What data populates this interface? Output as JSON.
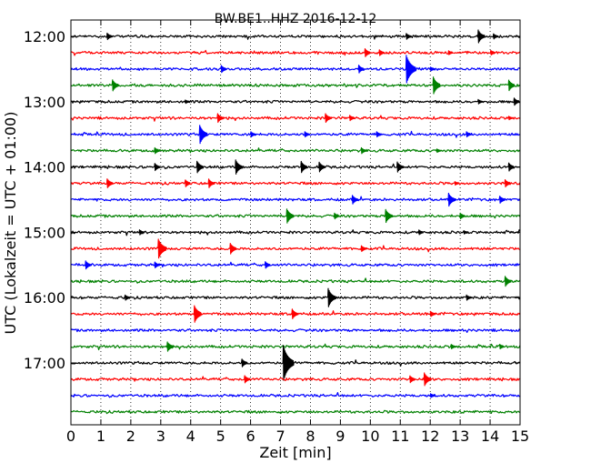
{
  "chart_data": {
    "type": "line",
    "title": "BW.BE1..HHZ 2016-12-12",
    "xlabel": "Zeit  [min]",
    "ylabel": "UTC (Lokalzeit = UTC + 01:00)",
    "xlim": [
      0,
      15
    ],
    "x_ticks": [
      0,
      1,
      2,
      3,
      4,
      5,
      6,
      7,
      8,
      9,
      10,
      11,
      12,
      13,
      14,
      15
    ],
    "x_tick_labels": [
      "0",
      "1",
      "2",
      "3",
      "4",
      "5",
      "6",
      "7",
      "8",
      "9",
      "10",
      "11",
      "12",
      "13",
      "14",
      "15"
    ],
    "grid": "vertical dotted lines at each minute",
    "trace_interval_minutes": 15,
    "y_tick_labels": [
      "12:00",
      "13:00",
      "14:00",
      "15:00",
      "16:00",
      "17:00"
    ],
    "trace_colors": [
      "#000000",
      "#ff0000",
      "#0000ff",
      "#008000"
    ],
    "series": [
      {
        "start": "12:00",
        "events": [
          [
            1.2,
            0.25
          ],
          [
            11.2,
            0.2
          ],
          [
            13.6,
            0.45
          ],
          [
            14.1,
            0.2
          ]
        ]
      },
      {
        "start": "12:15",
        "events": [
          [
            9.8,
            0.35
          ],
          [
            10.3,
            0.2
          ],
          [
            12.6,
            0.15
          ],
          [
            14.0,
            0.2
          ]
        ]
      },
      {
        "start": "12:30",
        "events": [
          [
            5.0,
            0.3
          ],
          [
            9.6,
            0.3
          ],
          [
            11.2,
            1.0
          ],
          [
            12.0,
            0.15
          ]
        ]
      },
      {
        "start": "12:45",
        "events": [
          [
            1.4,
            0.35
          ],
          [
            12.1,
            0.6
          ],
          [
            14.6,
            0.45
          ]
        ]
      },
      {
        "start": "13:00",
        "events": [
          [
            3.8,
            0.15
          ],
          [
            13.6,
            0.15
          ],
          [
            14.8,
            0.25
          ]
        ]
      },
      {
        "start": "13:15",
        "events": [
          [
            4.9,
            0.3
          ],
          [
            8.5,
            0.3
          ],
          [
            9.3,
            0.2
          ],
          [
            14.6,
            0.15
          ]
        ]
      },
      {
        "start": "13:30",
        "events": [
          [
            4.3,
            0.65
          ],
          [
            6.0,
            0.2
          ],
          [
            7.8,
            0.2
          ],
          [
            10.2,
            0.2
          ],
          [
            13.2,
            0.2
          ]
        ]
      },
      {
        "start": "13:45",
        "events": [
          [
            2.8,
            0.2
          ],
          [
            9.7,
            0.2
          ],
          [
            12.2,
            0.15
          ]
        ]
      },
      {
        "start": "14:00",
        "events": [
          [
            2.8,
            0.25
          ],
          [
            4.2,
            0.45
          ],
          [
            5.5,
            0.5
          ],
          [
            7.7,
            0.35
          ],
          [
            8.3,
            0.3
          ],
          [
            10.9,
            0.35
          ],
          [
            14.6,
            0.35
          ]
        ]
      },
      {
        "start": "14:15",
        "events": [
          [
            1.2,
            0.35
          ],
          [
            3.8,
            0.3
          ],
          [
            4.6,
            0.3
          ],
          [
            12.8,
            0.15
          ],
          [
            14.5,
            0.25
          ]
        ]
      },
      {
        "start": "14:30",
        "events": [
          [
            9.4,
            0.3
          ],
          [
            12.6,
            0.5
          ],
          [
            14.3,
            0.3
          ]
        ]
      },
      {
        "start": "14:45",
        "events": [
          [
            7.2,
            0.55
          ],
          [
            8.8,
            0.2
          ],
          [
            10.5,
            0.5
          ],
          [
            13.0,
            0.2
          ]
        ]
      },
      {
        "start": "15:00",
        "events": [
          [
            2.3,
            0.15
          ],
          [
            11.6,
            0.2
          ],
          [
            13.1,
            0.15
          ]
        ]
      },
      {
        "start": "15:15",
        "events": [
          [
            2.9,
            0.8
          ],
          [
            5.3,
            0.45
          ],
          [
            9.7,
            0.2
          ]
        ]
      },
      {
        "start": "15:30",
        "events": [
          [
            0.5,
            0.25
          ],
          [
            2.8,
            0.2
          ],
          [
            6.5,
            0.2
          ]
        ]
      },
      {
        "start": "15:45",
        "events": [
          [
            14.5,
            0.35
          ]
        ]
      },
      {
        "start": "16:00",
        "events": [
          [
            1.8,
            0.2
          ],
          [
            8.6,
            0.6
          ],
          [
            13.2,
            0.2
          ]
        ]
      },
      {
        "start": "16:15",
        "events": [
          [
            4.1,
            0.7
          ],
          [
            7.4,
            0.3
          ],
          [
            12.0,
            0.2
          ]
        ]
      },
      {
        "start": "16:30",
        "events": []
      },
      {
        "start": "16:45",
        "events": [
          [
            3.2,
            0.4
          ],
          [
            12.7,
            0.15
          ],
          [
            14.3,
            0.2
          ]
        ]
      },
      {
        "start": "17:00",
        "events": [
          [
            5.7,
            0.3
          ],
          [
            7.1,
            1.2
          ]
        ]
      },
      {
        "start": "17:15",
        "events": [
          [
            5.8,
            0.25
          ],
          [
            11.3,
            0.3
          ],
          [
            11.8,
            0.45
          ]
        ]
      },
      {
        "start": "17:30",
        "events": [
          [
            12.0,
            0.15
          ]
        ]
      },
      {
        "start": "17:45",
        "events": []
      }
    ]
  }
}
